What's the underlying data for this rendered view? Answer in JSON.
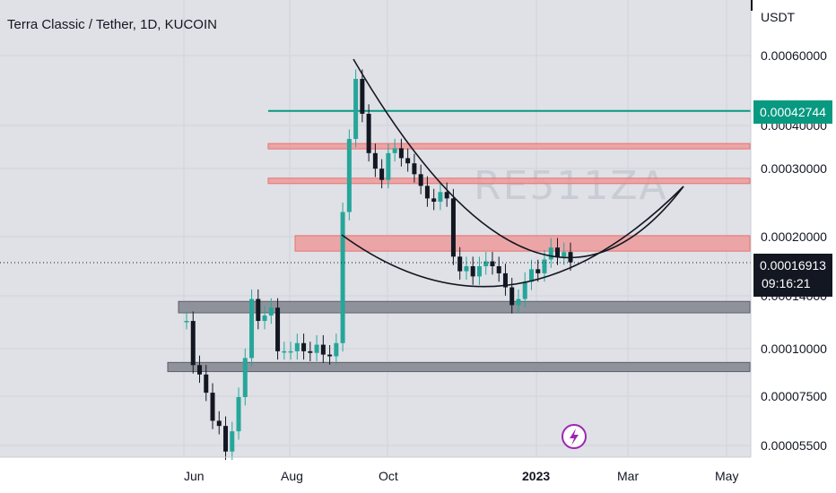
{
  "header": {
    "title": "Terra Classic / Tether, 1D, KUCOIN"
  },
  "axis": {
    "currency": "USDT"
  },
  "watermark": "RE511ZA",
  "price_badges": {
    "resistance_price": "0.00042744",
    "last_price": "0.00016913",
    "countdown": "09:16:21"
  },
  "colors": {
    "background": "#dfe1e6",
    "axis_background": "#ffffff",
    "candle_up": "#26a69a",
    "candle_down": "#131722",
    "zone_red_fill": "#ef9a9a",
    "zone_red_stroke": "#e57373",
    "zone_gray_fill": "#8a8d96",
    "green_line": "#089981",
    "badge_dark": "#131722"
  },
  "chart_data": {
    "type": "candlestick",
    "title": "Terra Classic / Tether, 1D, KUCOIN",
    "ylabel": "USDT",
    "y_scale": "log",
    "y_ticks": [
      "0.00060000",
      "0.00040000",
      "0.00030000",
      "0.00020000",
      "0.00014000",
      "0.00010000",
      "0.00007500",
      "0.00005500"
    ],
    "x_ticks": [
      {
        "label": "Jun",
        "bold": false
      },
      {
        "label": "Aug",
        "bold": false
      },
      {
        "label": "Oct",
        "bold": false
      },
      {
        "label": "2023",
        "bold": true
      },
      {
        "label": "Mar",
        "bold": false
      },
      {
        "label": "May",
        "bold": false
      }
    ],
    "series_close": [
      0.000118,
      9e-05,
      8.5e-05,
      7.6e-05,
      6.4e-05,
      6.2e-05,
      5.3e-05,
      6e-05,
      7.4e-05,
      9.4e-05,
      0.000135,
      0.000118,
      0.000122,
      0.000128,
      9.8e-05,
      9.8e-05,
      9.8e-05,
      0.000103,
      9.8e-05,
      9.7e-05,
      0.000102,
      9.6e-05,
      9.5e-05,
      0.000103,
      0.00023,
      0.00036,
      0.00052,
      0.00042,
      0.00033,
      0.0003,
      0.00028,
      0.00033,
      0.00034,
      0.00032,
      0.00031,
      0.00029,
      0.00027,
      0.00025,
      0.000245,
      0.00026,
      0.00025,
      0.000175,
      0.00016,
      0.000165,
      0.000155,
      0.000165,
      0.00017,
      0.000165,
      0.000158,
      0.000145,
      0.00013,
      0.000135,
      0.00015,
      0.000162,
      0.000158,
      0.000172,
      0.000185,
      0.000175,
      0.00018,
      0.000169
    ],
    "horizontal_levels": [
      {
        "kind": "line",
        "price": 0.00042744
      },
      {
        "kind": "zone",
        "price_low": 0.00034,
        "price_high": 0.00035
      },
      {
        "kind": "zone",
        "price_low": 0.000275,
        "price_high": 0.000283
      },
      {
        "kind": "zone",
        "price_low": 0.000181,
        "price_high": 0.000199
      },
      {
        "kind": "zone",
        "price_low": 0.000124,
        "price_high": 0.000133
      },
      {
        "kind": "zone",
        "price_low": 8.65e-05,
        "price_high": 9.15e-05
      }
    ]
  }
}
